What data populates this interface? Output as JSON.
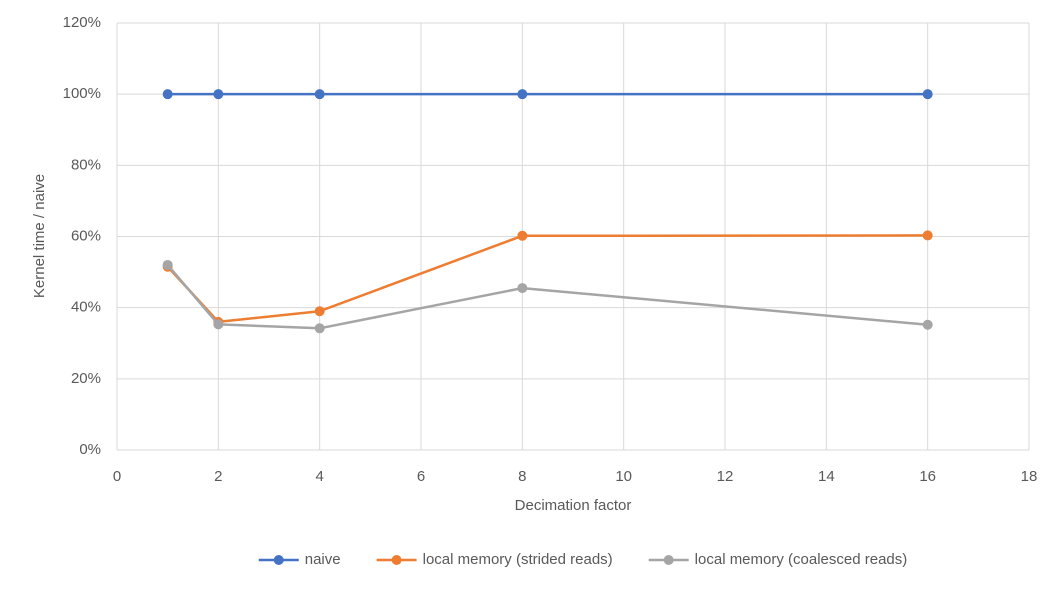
{
  "chart_data": {
    "type": "line",
    "x_label": "Decimation factor",
    "y_label": "Kernel time / naive",
    "x": [
      1,
      2,
      4,
      8,
      16
    ],
    "series": [
      {
        "name": "naive",
        "color": "#4472c4",
        "values": [
          100,
          100,
          100,
          100,
          100
        ]
      },
      {
        "name": "local memory (strided reads)",
        "color": "#ed7d31",
        "values": [
          51.5,
          36,
          39,
          60.2,
          60.3
        ]
      },
      {
        "name": "local memory (coalesced reads)",
        "color": "#a5a5a5",
        "values": [
          52,
          35.3,
          34.2,
          45.5,
          35.2
        ]
      }
    ],
    "xlim": [
      0,
      18
    ],
    "xticks": [
      0,
      2,
      4,
      6,
      8,
      10,
      12,
      14,
      16,
      18
    ],
    "ylim": [
      0,
      120
    ],
    "yticks": [
      {
        "value": 0,
        "label": "0%"
      },
      {
        "value": 20,
        "label": "20%"
      },
      {
        "value": 40,
        "label": "40%"
      },
      {
        "value": 60,
        "label": "60%"
      },
      {
        "value": 80,
        "label": "80%"
      },
      {
        "value": 100,
        "label": "100%"
      },
      {
        "value": 120,
        "label": "120%"
      }
    ],
    "grid": true,
    "legend": "bottom"
  }
}
